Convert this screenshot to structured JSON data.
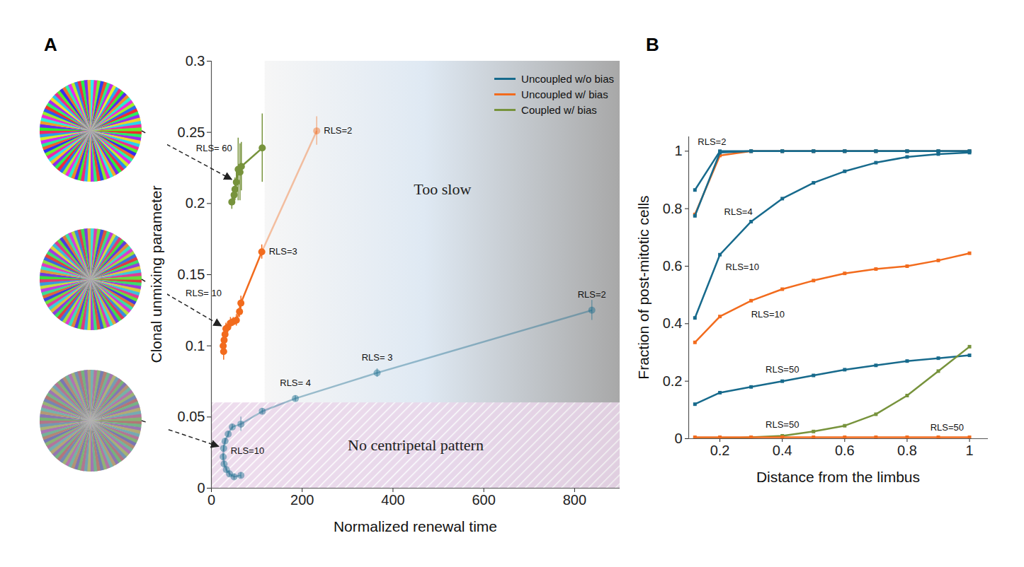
{
  "chart_data": [
    {
      "type": "scatter",
      "panel": "A",
      "x_label": "Normalized renewal time",
      "y_label": "Clonal unmixing parameter",
      "xlim": [
        0,
        900
      ],
      "xticks": [
        0,
        200,
        400,
        600,
        800
      ],
      "ylim": [
        0,
        0.3
      ],
      "yticks": [
        0,
        0.05,
        0.1,
        0.15,
        0.2,
        0.25,
        0.3
      ],
      "legend": "top-right",
      "marker": "circle",
      "regions": [
        {
          "label": "Too slow",
          "x": [
            118,
            900
          ],
          "y": [
            0,
            0.3
          ]
        },
        {
          "label": "No centripetal pattern",
          "x": [
            0,
            900
          ],
          "y": [
            0,
            0.06
          ]
        }
      ],
      "series": [
        {
          "name": "Uncoupled w/o bias",
          "color": "#176a8c",
          "x": [
            838,
            365,
            185,
            112,
            65,
            46,
            37,
            30,
            27,
            26,
            28,
            33,
            40,
            50,
            65
          ],
          "values": [
            0.125,
            0.081,
            0.063,
            0.054,
            0.045,
            0.043,
            0.038,
            0.033,
            0.028,
            0.022,
            0.017,
            0.013,
            0.01,
            0.008,
            0.009
          ],
          "errors": [
            0.007,
            0.003,
            0.002,
            0.002,
            0.005,
            0.002,
            0.002,
            0.002,
            0.002,
            0.002,
            0.002,
            0.002,
            0.002,
            0.002,
            0.002
          ],
          "point_labels": [
            "RLS=2",
            "RLS= 3",
            "RLS= 4",
            null,
            null,
            null,
            null,
            null,
            "RLS=10",
            null,
            null,
            null,
            null,
            null,
            null
          ]
        },
        {
          "name": "Uncoupled w/ bias",
          "color": "#f26b1d",
          "x": [
            232,
            111,
            65,
            62,
            55,
            48,
            42,
            36,
            32,
            30,
            28,
            26,
            27
          ],
          "values": [
            0.251,
            0.166,
            0.13,
            0.124,
            0.118,
            0.117,
            0.116,
            0.113,
            0.112,
            0.108,
            0.104,
            0.1,
            0.096
          ],
          "errors": [
            0.01,
            0.005,
            0.005,
            0.004,
            0.004,
            0.003,
            0.004,
            0.004,
            0.004,
            0.004,
            0.004,
            0.004,
            0.006
          ],
          "point_labels": [
            "RLS=2",
            "RLS=3",
            null,
            null,
            null,
            null,
            null,
            null,
            "RLS= 10",
            null,
            null,
            null,
            null
          ]
        },
        {
          "name": "Coupled w/ bias",
          "color": "#77933c",
          "x": [
            112,
            66,
            63,
            59,
            55,
            52,
            50,
            45
          ],
          "values": [
            0.239,
            0.226,
            0.222,
            0.224,
            0.215,
            0.21,
            0.206,
            0.201
          ],
          "errors": [
            0.024,
            0.017,
            0.02,
            0.022,
            0.01,
            0.008,
            0.006,
            0.005
          ],
          "point_labels": [
            null,
            null,
            null,
            null,
            "RLS= 60",
            null,
            null,
            null
          ]
        }
      ]
    },
    {
      "type": "line",
      "panel": "B",
      "x_label": "Distance from the limbus",
      "y_label": "Fraction of post-mitotic cells",
      "x": [
        0.12,
        0.2,
        0.3,
        0.4,
        0.5,
        0.6,
        0.7,
        0.8,
        0.9,
        1.0
      ],
      "xlim": [
        0.1,
        1.06
      ],
      "xticks": [
        0.2,
        0.4,
        0.6,
        0.8,
        1
      ],
      "ylim": [
        0,
        1.05
      ],
      "yticks": [
        0,
        0.2,
        0.4,
        0.6,
        0.8,
        1
      ],
      "marker": "square",
      "series": [
        {
          "name": "Uncoupled w/ bias",
          "values": [
            0.78,
            0.985,
            1,
            1,
            1,
            1,
            1,
            1,
            1,
            1
          ]
        },
        {
          "name": "Uncoupled w/o bias",
          "label": "RLS=2",
          "values": [
            0.865,
            1,
            1,
            1,
            1,
            1,
            1,
            1,
            1,
            1
          ]
        },
        {
          "name": "Uncoupled w/o bias",
          "label": "RLS=4",
          "values": [
            0.775,
            0.995,
            1,
            1,
            1,
            1,
            1,
            1,
            1,
            1
          ]
        },
        {
          "name": "Uncoupled w/o bias",
          "label": "RLS=10",
          "values": [
            0.42,
            0.64,
            0.755,
            0.835,
            0.89,
            0.93,
            0.96,
            0.98,
            0.99,
            0.995
          ]
        },
        {
          "name": "Uncoupled w/ bias",
          "label": "RLS=10",
          "values": [
            0.335,
            0.425,
            0.48,
            0.52,
            0.55,
            0.575,
            0.59,
            0.6,
            0.62,
            0.645
          ]
        },
        {
          "name": "Uncoupled w/o bias",
          "label": "RLS=50",
          "values": [
            0.12,
            0.16,
            0.18,
            0.2,
            0.22,
            0.24,
            0.255,
            0.27,
            0.28,
            0.29
          ]
        },
        {
          "name": "Coupled w/ bias",
          "label": "RLS=50",
          "values": [
            0,
            0,
            0.005,
            0.01,
            0.025,
            0.045,
            0.085,
            0.15,
            0.235,
            0.32
          ]
        },
        {
          "name": "Uncoupled w/ bias",
          "label": "RLS=50",
          "values": [
            0.005,
            0.005,
            0.005,
            0.005,
            0.005,
            0.005,
            0.005,
            0.005,
            0.005,
            0.005
          ]
        }
      ]
    }
  ]
}
